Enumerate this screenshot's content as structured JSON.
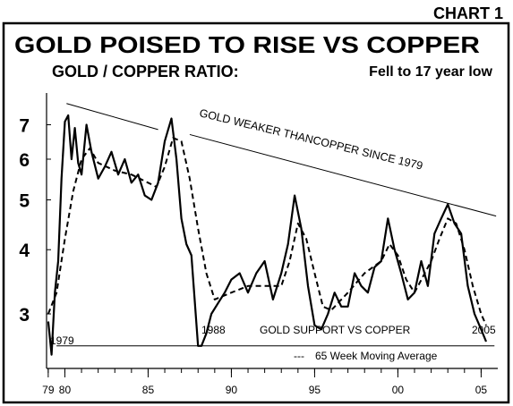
{
  "corner_label": "CHART 1",
  "chart_data": {
    "type": "line",
    "title": "GOLD POISED TO RISE VS COPPER",
    "subtitle_left": "GOLD / COPPER RATIO:",
    "subtitle_right": "Fell to 17 year low",
    "x_range": [
      1978.9,
      2006.0
    ],
    "y_scale": "log",
    "y_range": [
      2.35,
      8.2
    ],
    "y_ticks": [
      {
        "value": 3,
        "label": "3"
      },
      {
        "value": 4,
        "label": "4"
      },
      {
        "value": 5,
        "label": "5"
      },
      {
        "value": 6,
        "label": "6"
      },
      {
        "value": 7,
        "label": "7"
      }
    ],
    "x_ticks": [
      {
        "value": 1979,
        "label": "79"
      },
      {
        "value": 1980,
        "label": "80"
      },
      {
        "value": 1985,
        "label": "85"
      },
      {
        "value": 1990,
        "label": "90"
      },
      {
        "value": 1995,
        "label": "95"
      },
      {
        "value": 2000,
        "label": "00"
      },
      {
        "value": 2005,
        "label": "05"
      }
    ],
    "series": [
      {
        "style": "solid",
        "x": [
          1979.0,
          1979.2,
          1979.4,
          1979.6,
          1979.8,
          1980.0,
          1980.2,
          1980.4,
          1980.6,
          1980.8,
          1981.0,
          1981.3,
          1981.6,
          1982.0,
          1982.4,
          1982.8,
          1983.2,
          1983.6,
          1984.0,
          1984.4,
          1984.8,
          1985.2,
          1985.6,
          1986.0,
          1986.4,
          1986.7,
          1987.0,
          1987.3,
          1987.6,
          1988.0,
          1988.2,
          1988.5,
          1988.8,
          1989.2,
          1989.6,
          1990.0,
          1990.5,
          1991.0,
          1991.5,
          1992.0,
          1992.5,
          1993.0,
          1993.4,
          1993.8,
          1994.2,
          1994.6,
          1995.0,
          1995.4,
          1995.8,
          1996.2,
          1996.6,
          1997.0,
          1997.4,
          1997.8,
          1998.2,
          1998.6,
          1999.0,
          1999.4,
          1999.8,
          2000.2,
          2000.6,
          2001.0,
          2001.4,
          2001.8,
          2002.2,
          2002.6,
          2003.0,
          2003.4,
          2003.8,
          2004.2,
          2004.6,
          2005.0,
          2005.3
        ],
        "values": [
          2.9,
          2.5,
          3.3,
          3.8,
          5.5,
          7.1,
          7.3,
          6.0,
          6.9,
          5.9,
          5.6,
          7.0,
          6.2,
          5.5,
          5.8,
          6.2,
          5.6,
          6.0,
          5.4,
          5.6,
          5.1,
          5.0,
          5.4,
          6.5,
          7.2,
          6.0,
          4.6,
          4.1,
          3.9,
          2.6,
          2.6,
          2.75,
          3.0,
          3.15,
          3.3,
          3.5,
          3.6,
          3.3,
          3.6,
          3.8,
          3.2,
          3.6,
          4.1,
          5.1,
          4.4,
          3.4,
          2.85,
          2.8,
          3.0,
          3.3,
          3.1,
          3.1,
          3.6,
          3.4,
          3.3,
          3.7,
          3.8,
          4.6,
          4.0,
          3.6,
          3.2,
          3.3,
          3.8,
          3.4,
          4.3,
          4.6,
          4.9,
          4.5,
          4.3,
          3.4,
          3.0,
          2.8,
          2.65
        ]
      },
      {
        "name": "65 Week Moving Average",
        "style": "dashed",
        "x": [
          1979.0,
          1979.5,
          1980.0,
          1980.5,
          1981.0,
          1981.5,
          1982.0,
          1983.0,
          1984.0,
          1985.0,
          1985.5,
          1986.0,
          1986.5,
          1987.0,
          1987.5,
          1988.0,
          1988.5,
          1989.0,
          1990.0,
          1991.0,
          1992.0,
          1993.0,
          1993.5,
          1994.0,
          1994.5,
          1995.0,
          1995.5,
          1996.0,
          1997.0,
          1998.0,
          1999.0,
          1999.5,
          2000.0,
          2000.5,
          2001.0,
          2002.0,
          2002.5,
          2003.0,
          2003.5,
          2004.0,
          2004.5,
          2005.0,
          2005.3
        ],
        "values": [
          3.0,
          3.3,
          4.2,
          5.2,
          6.0,
          6.3,
          5.9,
          5.7,
          5.6,
          5.4,
          5.3,
          5.8,
          6.6,
          6.5,
          5.5,
          4.4,
          3.6,
          3.2,
          3.3,
          3.4,
          3.4,
          3.4,
          3.8,
          4.5,
          4.2,
          3.6,
          3.1,
          3.05,
          3.3,
          3.6,
          3.8,
          4.1,
          3.9,
          3.5,
          3.3,
          3.8,
          4.2,
          4.6,
          4.5,
          4.0,
          3.4,
          3.0,
          2.85
        ]
      }
    ],
    "annotations": {
      "downtrend_label": "GOLD WEAKER THANCOPPER SINCE 1979",
      "support_label": "GOLD SUPPORT VS COPPER",
      "start_year_label": "1979",
      "mid_year_label": "1988",
      "end_year_label": "2005",
      "legend_label": "65 Week Moving Average",
      "legend_dash": "---"
    },
    "trendlines": [
      {
        "name": "short-downtrend",
        "from": {
          "x": 1980.1,
          "y": 7.7
        },
        "to": {
          "x": 1985.6,
          "y": 6.85
        }
      },
      {
        "name": "long-downtrend",
        "from": {
          "x": 1987.5,
          "y": 6.7
        },
        "to": {
          "x": 2005.9,
          "y": 4.65
        }
      },
      {
        "name": "support",
        "from": {
          "x": 1979.5,
          "y": 2.6
        },
        "to": {
          "x": 2005.8,
          "y": 2.6
        }
      }
    ]
  }
}
